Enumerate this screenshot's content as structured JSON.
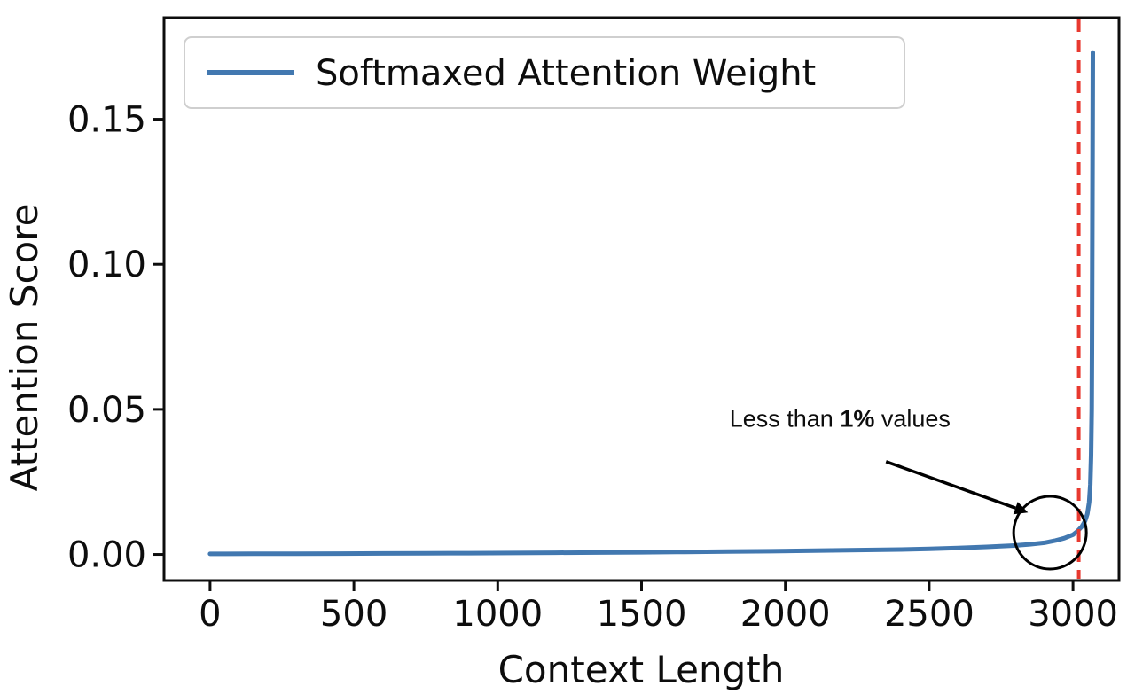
{
  "chart_data": {
    "type": "line",
    "title": "",
    "xlabel": "Context Length",
    "ylabel": "Attention Score",
    "xlim": [
      -160,
      3160
    ],
    "ylim": [
      -0.009,
      0.185
    ],
    "grid": false,
    "xticks": {
      "values": [
        0,
        500,
        1000,
        1500,
        2000,
        2500,
        3000
      ],
      "labels": [
        "0",
        "500",
        "1000",
        "1500",
        "2000",
        "2500",
        "3000"
      ]
    },
    "yticks": {
      "values": [
        0.0,
        0.05,
        0.1,
        0.15
      ],
      "labels": [
        "0.00",
        "0.05",
        "0.10",
        "0.15"
      ]
    },
    "legend": {
      "position": "upper-left",
      "entries": [
        {
          "label": "Softmaxed Attention Weight",
          "color": "#4278b0"
        }
      ]
    },
    "series": [
      {
        "name": "Softmaxed Attention Weight",
        "color": "#4278b0",
        "width": 5,
        "points": [
          [
            0,
            0.0002
          ],
          [
            150,
            0.00022
          ],
          [
            300,
            0.00026
          ],
          [
            450,
            0.0003
          ],
          [
            600,
            0.00034
          ],
          [
            750,
            0.0004
          ],
          [
            900,
            0.00045
          ],
          [
            1050,
            0.0005
          ],
          [
            1200,
            0.00058
          ],
          [
            1350,
            0.00066
          ],
          [
            1500,
            0.00075
          ],
          [
            1650,
            0.00086
          ],
          [
            1800,
            0.001
          ],
          [
            1950,
            0.0011
          ],
          [
            2100,
            0.0013
          ],
          [
            2250,
            0.0015
          ],
          [
            2400,
            0.0017
          ],
          [
            2500,
            0.0019
          ],
          [
            2600,
            0.0022
          ],
          [
            2700,
            0.0026
          ],
          [
            2800,
            0.0031
          ],
          [
            2850,
            0.0035
          ],
          [
            2900,
            0.004
          ],
          [
            2940,
            0.0048
          ],
          [
            2970,
            0.0056
          ],
          [
            3000,
            0.0068
          ],
          [
            3015,
            0.008
          ],
          [
            3030,
            0.0095
          ],
          [
            3042,
            0.0115
          ],
          [
            3050,
            0.014
          ],
          [
            3056,
            0.018
          ],
          [
            3060,
            0.024
          ],
          [
            3063,
            0.034
          ],
          [
            3065,
            0.05
          ],
          [
            3066,
            0.07
          ],
          [
            3067,
            0.1
          ],
          [
            3068,
            0.14
          ],
          [
            3069,
            0.173
          ]
        ]
      }
    ],
    "vline": {
      "x": 3020,
      "color": "#e8392f",
      "dash": [
        14,
        9
      ],
      "width": 4
    },
    "annotation": {
      "parts": [
        {
          "text": "Less than ",
          "bold": false
        },
        {
          "text": "1%",
          "bold": true
        },
        {
          "text": " values",
          "bold": false
        }
      ],
      "text_xy": [
        2190,
        0.044
      ],
      "arrow_start": [
        2350,
        0.032
      ],
      "arrow_end": [
        2800,
        0.016
      ],
      "circle_center": [
        2920,
        0.0075
      ],
      "circle_radius_px": 41
    }
  }
}
